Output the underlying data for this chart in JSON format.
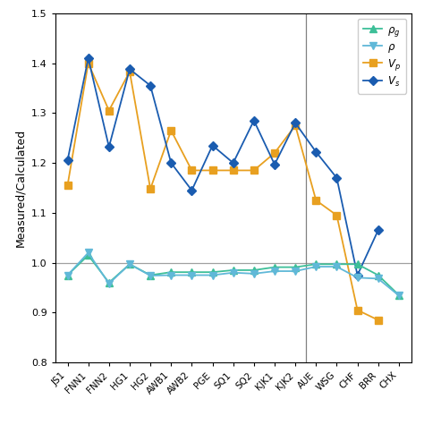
{
  "categories": [
    "JS1",
    "FNN1",
    "FNN2",
    "HG1",
    "HG2",
    "AWB1",
    "AWB2",
    "PGE",
    "SQ1",
    "SQ2",
    "KJK1",
    "KJK2",
    "AUE",
    "WSG",
    "CHF",
    "BRR",
    "CHX"
  ],
  "rho_g": [
    0.975,
    1.015,
    0.96,
    0.997,
    0.975,
    0.981,
    0.981,
    0.981,
    0.985,
    0.985,
    0.991,
    0.991,
    0.997,
    0.997,
    0.997,
    0.975,
    0.935
  ],
  "rho": [
    0.975,
    1.02,
    0.958,
    0.997,
    0.974,
    0.975,
    0.975,
    0.975,
    0.98,
    0.978,
    0.983,
    0.983,
    0.992,
    0.992,
    0.97,
    0.968,
    0.934
  ],
  "Vp": [
    1.155,
    1.4,
    1.305,
    1.383,
    1.148,
    1.265,
    1.185,
    1.185,
    1.185,
    1.185,
    1.22,
    1.275,
    1.125,
    1.095,
    0.905,
    0.885,
    null
  ],
  "Vs": [
    1.205,
    1.41,
    1.232,
    1.388,
    1.355,
    1.2,
    1.145,
    1.235,
    1.2,
    1.285,
    1.197,
    1.28,
    1.222,
    1.17,
    0.975,
    1.065,
    null
  ],
  "vline_after_idx": 11,
  "ylabel": "Measured/Calculated",
  "ylim": [
    0.8,
    1.5
  ],
  "yticks": [
    0.8,
    0.9,
    1.0,
    1.1,
    1.2,
    1.3,
    1.4,
    1.5
  ],
  "color_rho_g": "#3dbf98",
  "color_rho": "#60b8d8",
  "color_Vp": "#e8a020",
  "color_Vs": "#1a5cb0",
  "hline_color": "#a0a0a0",
  "vline_color": "#808080",
  "legend_labels": [
    "ρg",
    "ρ",
    "Vp",
    "Vs"
  ],
  "figsize": [
    4.74,
    4.94
  ],
  "dpi": 100
}
